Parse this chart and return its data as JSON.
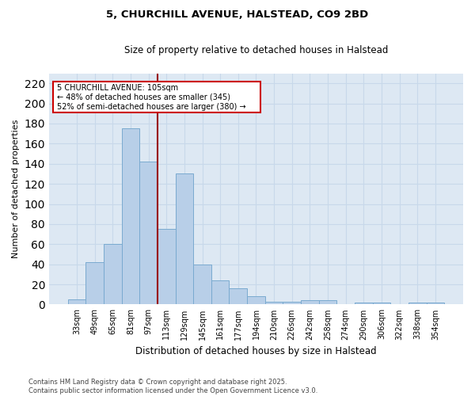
{
  "title_line1": "5, CHURCHILL AVENUE, HALSTEAD, CO9 2BD",
  "title_line2": "Size of property relative to detached houses in Halstead",
  "xlabel": "Distribution of detached houses by size in Halstead",
  "ylabel": "Number of detached properties",
  "categories": [
    "33sqm",
    "49sqm",
    "65sqm",
    "81sqm",
    "97sqm",
    "113sqm",
    "129sqm",
    "145sqm",
    "161sqm",
    "177sqm",
    "194sqm",
    "210sqm",
    "226sqm",
    "242sqm",
    "258sqm",
    "274sqm",
    "290sqm",
    "306sqm",
    "322sqm",
    "338sqm",
    "354sqm"
  ],
  "values": [
    5,
    42,
    60,
    175,
    142,
    75,
    130,
    40,
    24,
    16,
    8,
    3,
    3,
    4,
    4,
    0,
    2,
    2,
    0,
    2,
    2
  ],
  "bar_color": "#b8cfe8",
  "bar_edge_color": "#7aaad0",
  "vline_x_index": 5,
  "vline_color": "#990000",
  "annotation_box_color": "#cc0000",
  "ylim": [
    0,
    230
  ],
  "yticks": [
    0,
    20,
    40,
    60,
    80,
    100,
    120,
    140,
    160,
    180,
    200,
    220
  ],
  "grid_color": "#c8d8ea",
  "background_color": "#dde8f3",
  "property_label": "5 CHURCHILL AVENUE: 105sqm",
  "arrow_left_text": "← 48% of detached houses are smaller (345)",
  "arrow_right_text": "52% of semi-detached houses are larger (380) →",
  "footnote": "Contains HM Land Registry data © Crown copyright and database right 2025.\nContains public sector information licensed under the Open Government Licence v3.0."
}
